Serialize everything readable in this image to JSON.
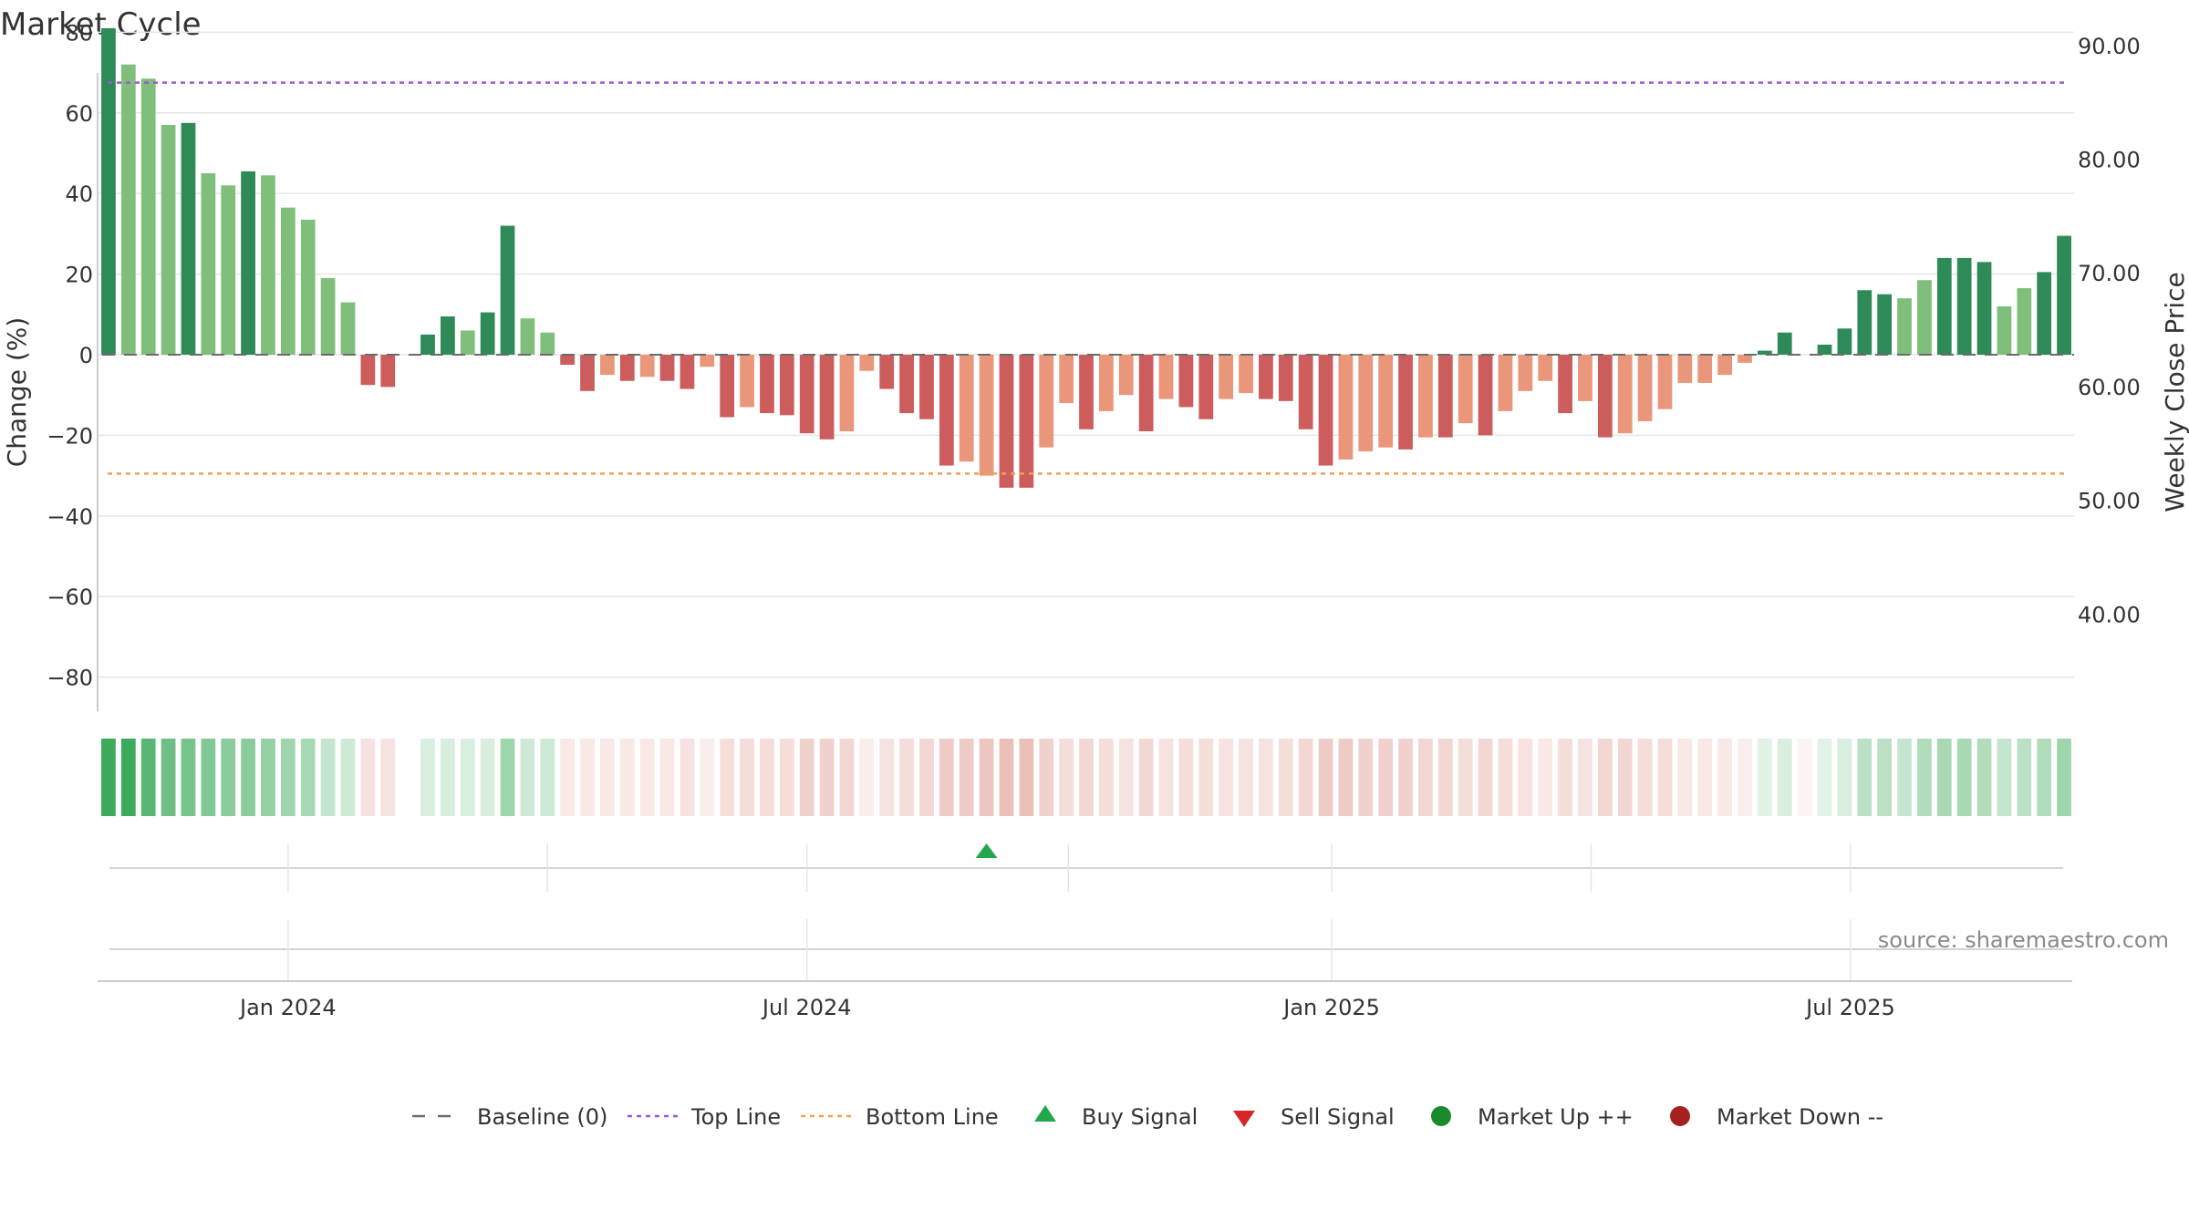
{
  "chart_data": {
    "type": "bar",
    "title": "Market Cycle",
    "ylabel": "Change (%)",
    "y2label": "Weekly Close Price",
    "ylim": [
      -88,
      88
    ],
    "y2lim": [
      31.6,
      94.0
    ],
    "yticks": [
      "80",
      "60",
      "40",
      "20",
      "0",
      "−20",
      "−40",
      "−60",
      "−80"
    ],
    "ytick_values": [
      80,
      60,
      40,
      20,
      0,
      -20,
      -40,
      -60,
      -80
    ],
    "y2ticks": [
      "90.00",
      "80.00",
      "70.00",
      "60.00",
      "50.00",
      "40.00"
    ],
    "y2tick_values": [
      90,
      80,
      70,
      60,
      50,
      40
    ],
    "xticks": [
      "Jan 2024",
      "Jul 2024",
      "Jan 2025",
      "Jul 2025"
    ],
    "xtick_positions": [
      9.5,
      35.5,
      61.8,
      87.8
    ],
    "top_line": 67.5,
    "bottom_line": -29.5,
    "baseline": 0,
    "values": [
      81,
      72,
      68.5,
      57,
      57.5,
      45,
      42,
      45.5,
      44.5,
      36.5,
      33.5,
      19,
      13,
      -7.5,
      -8,
      0,
      5,
      9.5,
      6,
      10.5,
      32,
      9,
      5.5,
      -2.5,
      -9,
      -5,
      -6.5,
      -5.5,
      -6.5,
      -8.5,
      -3,
      -15.5,
      -13,
      -14.5,
      -15,
      -19.5,
      -21,
      -19,
      -4,
      -8.5,
      -14.5,
      -16,
      -27.5,
      -26.5,
      -30,
      -33,
      -33,
      -23,
      -12,
      -18.5,
      -14,
      -10,
      -19,
      -11,
      -13,
      -16,
      -11,
      -9.5,
      -11,
      -11.5,
      -18.5,
      -27.5,
      -26,
      -24,
      -23,
      -23.5,
      -20.5,
      -20.5,
      -17,
      -20,
      -14,
      -9,
      -6.5,
      -14.5,
      -11.5,
      -20.5,
      -19.5,
      -16.5,
      -13.5,
      -7,
      -7,
      -5,
      -2,
      1,
      5.5,
      0,
      2.5,
      6.5,
      16,
      15,
      14,
      18.5,
      24,
      24,
      23,
      12,
      16.5,
      20.5,
      29.5
    ],
    "bar_colors": [
      "d",
      "l",
      "l",
      "l",
      "d",
      "l",
      "l",
      "d",
      "l",
      "l",
      "l",
      "l",
      "l",
      "r",
      "r",
      "d",
      "d",
      "d",
      "l",
      "d",
      "d",
      "l",
      "l",
      "r",
      "r",
      "o",
      "r",
      "o",
      "r",
      "r",
      "o",
      "r",
      "o",
      "r",
      "r",
      "r",
      "r",
      "o",
      "o",
      "r",
      "r",
      "r",
      "r",
      "o",
      "o",
      "r",
      "r",
      "o",
      "o",
      "r",
      "o",
      "o",
      "r",
      "o",
      "r",
      "r",
      "o",
      "o",
      "r",
      "r",
      "r",
      "r",
      "o",
      "o",
      "o",
      "r",
      "o",
      "r",
      "o",
      "r",
      "o",
      "o",
      "o",
      "r",
      "o",
      "r",
      "o",
      "o",
      "o",
      "o",
      "o",
      "o",
      "o",
      "d",
      "d",
      "d",
      "d",
      "d",
      "d",
      "d",
      "l",
      "l",
      "d",
      "d",
      "d",
      "l",
      "l",
      "d",
      "d",
      "d"
    ],
    "heat_strip": [
      1,
      1,
      0.85,
      0.75,
      0.7,
      0.65,
      0.6,
      0.6,
      0.55,
      0.5,
      0.45,
      0.3,
      0.25,
      -0.25,
      -0.25,
      0,
      0.2,
      0.2,
      0.2,
      0.2,
      0.5,
      0.25,
      0.25,
      -0.2,
      -0.2,
      -0.2,
      -0.2,
      -0.2,
      -0.2,
      -0.25,
      -0.15,
      -0.3,
      -0.3,
      -0.3,
      -0.3,
      -0.4,
      -0.4,
      -0.35,
      -0.15,
      -0.25,
      -0.3,
      -0.35,
      -0.45,
      -0.45,
      -0.5,
      -0.55,
      -0.55,
      -0.4,
      -0.3,
      -0.35,
      -0.3,
      -0.25,
      -0.35,
      -0.25,
      -0.3,
      -0.3,
      -0.25,
      -0.25,
      -0.25,
      -0.3,
      -0.35,
      -0.45,
      -0.45,
      -0.4,
      -0.4,
      -0.4,
      -0.35,
      -0.35,
      -0.3,
      -0.35,
      -0.3,
      -0.25,
      -0.2,
      -0.3,
      -0.25,
      -0.35,
      -0.35,
      -0.3,
      -0.3,
      -0.2,
      -0.2,
      -0.2,
      -0.15,
      0.15,
      0.2,
      -0.1,
      0.15,
      0.2,
      0.35,
      0.35,
      0.3,
      0.4,
      0.45,
      0.45,
      0.4,
      0.3,
      0.35,
      0.4,
      0.5
    ],
    "buy_signals": [
      44
    ],
    "sell_signals": [],
    "source": "source: sharemaestro.com",
    "legend": [
      "Baseline (0)",
      "Top Line",
      "Bottom Line",
      "Buy Signal",
      "Sell Signal",
      "Market Up ++",
      "Market Down --"
    ]
  },
  "colors": {
    "dark_green": "#2e8b57",
    "light_green": "#7fbf7b",
    "red": "#cd5c5c",
    "salmon": "#e9967a",
    "top_line": "#9b59d0",
    "bottom_line": "#f0a050",
    "buy": "#22a84a",
    "sell": "#d62728",
    "market_up": "#1a8a2a",
    "market_down": "#a52020"
  }
}
